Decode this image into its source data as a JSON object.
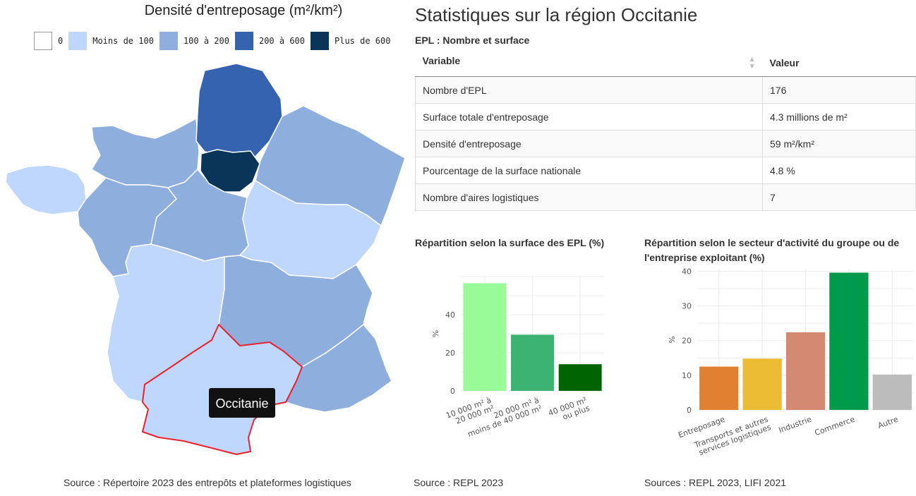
{
  "map": {
    "title": "Densité d'entreposage (m²/km²)",
    "legend": [
      {
        "label": "0",
        "color": "#ffffff"
      },
      {
        "label": "Moins de 100",
        "color": "#bfd7fc"
      },
      {
        "label": "100 à 200",
        "color": "#8eaedd"
      },
      {
        "label": "200 à 600",
        "color": "#3563b0"
      },
      {
        "label": "Plus de 600",
        "color": "#0b3558"
      }
    ],
    "tooltip": "Occitanie",
    "source": "Source : Répertoire 2023 des entrepôts et plateformes logistiques"
  },
  "page": {
    "title": "Statistiques sur la région Occitanie"
  },
  "table": {
    "caption": "EPL : Nombre et surface",
    "headers": [
      "Variable",
      "Valeur"
    ],
    "rows": [
      [
        "Nombre d'EPL",
        "176"
      ],
      [
        "Surface totale d'entreposage",
        "4.3 millions de m²"
      ],
      [
        "Densité d'entreposage",
        "59 m²/km²"
      ],
      [
        "Pourcentage de la surface nationale",
        "4.8 %"
      ],
      [
        "Nombre d'aires logistiques",
        "7"
      ]
    ]
  },
  "chart_data": [
    {
      "type": "bar",
      "title": "Répartition selon la surface des EPL (%)",
      "ylabel": "%",
      "categories": [
        "10 000 m² à\n20 000 m²",
        "20 000 m² à\nmoins de 40 000 m²",
        "40 000 m²\nou plus"
      ],
      "values": [
        56.5,
        29.5,
        14
      ],
      "colors": [
        "#98fb98",
        "#3cb371",
        "#006400"
      ],
      "ylim": [
        0,
        60
      ],
      "yticks": [
        0,
        20,
        40
      ],
      "source": "Source : REPL 2023"
    },
    {
      "type": "bar",
      "title": "Répartition selon le secteur d'activité du groupe ou de l'entreprise exploitant (%)",
      "ylabel": "%",
      "categories": [
        "Entreposage",
        "Transports et autres\nservices logistiques",
        "Industrie",
        "Commerce",
        "Autre"
      ],
      "values": [
        12.5,
        14.8,
        22.4,
        39.6,
        10.2
      ],
      "colors": [
        "#e08030",
        "#ebbb33",
        "#d48a72",
        "#009a4d",
        "#bcbcbc"
      ],
      "ylim": [
        0,
        40.5
      ],
      "yticks": [
        0,
        10,
        20,
        30,
        40
      ],
      "source": "Sources : REPL 2023, LIFI 2021"
    }
  ]
}
